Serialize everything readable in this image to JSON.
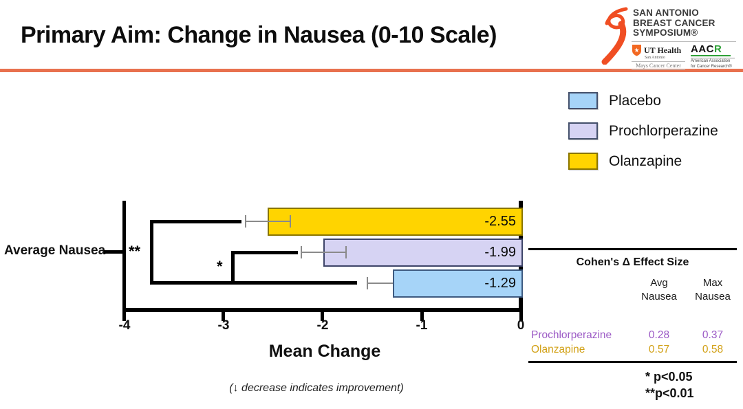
{
  "slide": {
    "title": "Primary Aim: Change in Nausea (0-10 Scale)",
    "accent_color": "#E8714E"
  },
  "logo": {
    "ribbon_color": "#F04E23",
    "name_line1": "SAN ANTONIO",
    "name_line2": "BREAST CANCER",
    "name_line3": "SYMPOSIUM®",
    "uthealth": {
      "name": "UT Health",
      "sub": "San Antonio",
      "center": "Mays Cancer Center"
    },
    "aacr": {
      "acronym_black": "AAC",
      "acronym_green": "R",
      "sub": "American Association for Cancer Research®"
    }
  },
  "legend": {
    "items": [
      {
        "label": "Placebo",
        "color": "#A6D4F8",
        "border": "#44506B"
      },
      {
        "label": "Prochlorperazine",
        "color": "#D6D3F3",
        "border": "#44506B"
      },
      {
        "label": "Olanzapine",
        "color": "#FFD400",
        "border": "#8A7500"
      }
    ]
  },
  "chart_data": {
    "type": "bar",
    "orientation": "horizontal",
    "categories": [
      "Average Nausea"
    ],
    "series": [
      {
        "name": "Olanzapine",
        "value": -2.55,
        "label": "-2.55",
        "error_low": -2.78,
        "error_high": -2.33,
        "color": "#FFD400",
        "border": "#8A7500"
      },
      {
        "name": "Prochlorperazine",
        "value": -1.99,
        "label": "-1.99",
        "error_low": -2.22,
        "error_high": -1.77,
        "color": "#D6D3F3",
        "border": "#3D4468"
      },
      {
        "name": "Placebo",
        "value": -1.29,
        "label": "-1.29",
        "error_low": -1.55,
        "error_high": -1.29,
        "color": "#A6D4F8",
        "border": "#3D5A80"
      }
    ],
    "xlabel": "Mean Change",
    "xlim": [
      -4,
      0
    ],
    "x_ticks": [
      "-4",
      "-3",
      "-2",
      "-1",
      "0"
    ],
    "grid": false,
    "legend_position": "upper-right",
    "note": "(↓ decrease indicates improvement)",
    "significance": [
      {
        "symbol": "**",
        "comparison": "Olanzapine vs Placebo"
      },
      {
        "symbol": "*",
        "comparison": "Prochlorperazine vs Placebo"
      }
    ]
  },
  "effect_table": {
    "title": "Cohen's Δ Effect Size",
    "col_headers": [
      {
        "line1": "Avg",
        "line2": "Nausea"
      },
      {
        "line1": "Max",
        "line2": "Nausea"
      }
    ],
    "rows": [
      {
        "label": "Prochlorperazine",
        "avg": "0.28",
        "max": "0.37",
        "color": "#9B59C5"
      },
      {
        "label": "Olanzapine",
        "avg": "0.57",
        "max": "0.58",
        "color": "#D2A117"
      }
    ]
  },
  "footnotes": {
    "line1": "* p<0.05",
    "line2": "**p<0.01"
  }
}
